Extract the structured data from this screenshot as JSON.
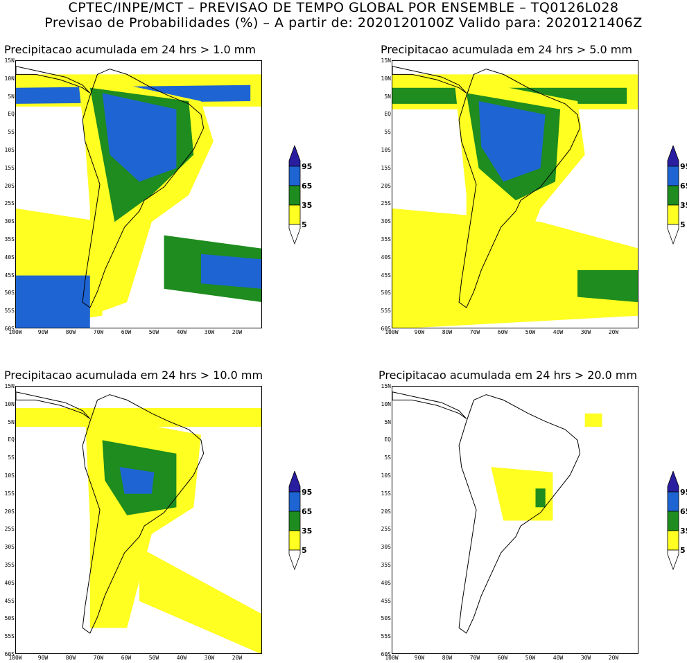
{
  "header": {
    "line1": "CPTEC/INPE/MCT – PREVISAO DE TEMPO GLOBAL POR ENSEMBLE – TQ0126L028",
    "line2": "Previsao de Probabilidades (%) –   A partir de: 2020120100Z  Valido para: 2020121406Z"
  },
  "panels": [
    {
      "title": "Precipitacao acumulada em 24 hrs > 1.0 mm"
    },
    {
      "title": "Precipitacao acumulada em 24 hrs > 5.0 mm"
    },
    {
      "title": "Precipitacao acumulada em 24 hrs > 10.0 mm"
    },
    {
      "title": "Precipitacao acumulada em 24 hrs > 20.0 mm"
    }
  ],
  "lat_labels": [
    "15N",
    "10N",
    "5N",
    "EQ",
    "5S",
    "10S",
    "15S",
    "20S",
    "25S",
    "30S",
    "35S",
    "40S",
    "45S",
    "50S",
    "55S",
    "60S"
  ],
  "lon_labels": [
    "100W",
    "90W",
    "80W",
    "70W",
    "60W",
    "50W",
    "40W",
    "30W",
    "20W"
  ],
  "legend": {
    "levels": [
      "95",
      "65",
      "35",
      "5"
    ],
    "colors": {
      "c95": "#2a1ea0",
      "c65": "#1e64d2",
      "c35": "#1e8c1e",
      "c5": "#ffff22"
    }
  },
  "colors": {
    "coast": "#000000"
  }
}
